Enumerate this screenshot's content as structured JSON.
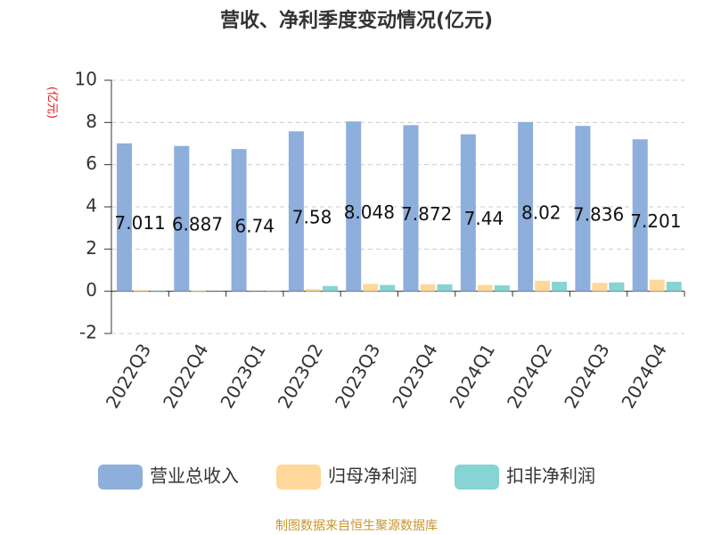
{
  "chart_data": {
    "type": "bar",
    "title": "营收、净利季度变动情况(亿元)",
    "y_label": "(亿元)",
    "source": "制图数据来自恒生聚源数据库",
    "categories": [
      "2022Q3",
      "2022Q4",
      "2023Q1",
      "2023Q2",
      "2023Q3",
      "2023Q4",
      "2024Q1",
      "2024Q2",
      "2024Q3",
      "2024Q4"
    ],
    "series": [
      {
        "name": "营业总收入",
        "color": "#8eaedb",
        "values": [
          7.011,
          6.887,
          6.74,
          7.58,
          8.048,
          7.872,
          7.44,
          8.02,
          7.836,
          7.201
        ]
      },
      {
        "name": "归母净利润",
        "color": "#fdd89a",
        "values": [
          0.05,
          0.03,
          0.01,
          0.1,
          0.35,
          0.33,
          0.3,
          0.5,
          0.4,
          0.55
        ]
      },
      {
        "name": "扣非净利润",
        "color": "#86d4d4",
        "values": [
          0.02,
          0.01,
          0.02,
          0.25,
          0.3,
          0.33,
          0.28,
          0.45,
          0.42,
          0.45
        ]
      }
    ],
    "ylim": [
      -2,
      10
    ],
    "yticks": [
      -2,
      0,
      2,
      4,
      6,
      8,
      10
    ],
    "grid": true,
    "legend": "bottom"
  }
}
